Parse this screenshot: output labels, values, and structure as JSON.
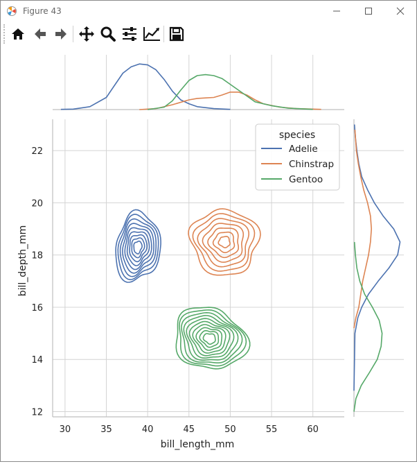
{
  "window": {
    "title": "Figure 43",
    "controls": [
      "minimize",
      "maximize",
      "close"
    ]
  },
  "toolbar": {
    "buttons": [
      {
        "name": "home-icon",
        "label": "Home"
      },
      {
        "name": "back-icon",
        "label": "Back"
      },
      {
        "name": "forward-icon",
        "label": "Forward"
      },
      {
        "name": "pan-icon",
        "label": "Pan"
      },
      {
        "name": "zoom-icon",
        "label": "Zoom"
      },
      {
        "name": "subplots-icon",
        "label": "Subplots"
      },
      {
        "name": "customize-icon",
        "label": "Customize"
      },
      {
        "name": "save-icon",
        "label": "Save"
      }
    ]
  },
  "chart_data": {
    "type": "kde-jointplot",
    "xlabel": "bill_length_mm",
    "ylabel": "bill_depth_mm",
    "xlim": [
      28.5,
      63.8
    ],
    "ylim": [
      11.8,
      23.2
    ],
    "xticks": [
      30,
      35,
      40,
      45,
      50,
      55,
      60
    ],
    "yticks": [
      12,
      14,
      16,
      18,
      20,
      22
    ],
    "grid": true,
    "legend": {
      "title": "species",
      "placement": "top-right"
    },
    "series": [
      {
        "name": "Adelie",
        "color": "#4c72b0",
        "center": [
          38.8,
          18.3
        ],
        "x_marginal": [
          [
            29.5,
            0.005
          ],
          [
            31,
            0.01
          ],
          [
            33,
            0.06
          ],
          [
            35,
            0.25
          ],
          [
            36,
            0.5
          ],
          [
            37,
            0.75
          ],
          [
            38,
            0.88
          ],
          [
            39,
            0.94
          ],
          [
            40,
            0.92
          ],
          [
            41,
            0.82
          ],
          [
            42,
            0.62
          ],
          [
            43,
            0.38
          ],
          [
            44,
            0.2
          ],
          [
            45,
            0.12
          ],
          [
            46,
            0.06
          ],
          [
            48,
            0.02
          ],
          [
            50,
            0.005
          ]
        ],
        "y_marginal": [
          [
            12.8,
            0.0
          ],
          [
            15.0,
            0.02
          ],
          [
            15.6,
            0.08
          ],
          [
            16,
            0.16
          ],
          [
            16.5,
            0.3
          ],
          [
            17,
            0.5
          ],
          [
            17.5,
            0.72
          ],
          [
            18,
            0.9
          ],
          [
            18.5,
            0.95
          ],
          [
            19,
            0.82
          ],
          [
            19.5,
            0.6
          ],
          [
            20,
            0.42
          ],
          [
            20.5,
            0.28
          ],
          [
            21,
            0.16
          ],
          [
            21.5,
            0.1
          ],
          [
            22,
            0.06
          ],
          [
            22.5,
            0.03
          ],
          [
            23,
            0.01
          ]
        ]
      },
      {
        "name": "Chinstrap",
        "color": "#dd8452",
        "center": [
          49.3,
          18.5
        ],
        "x_marginal": [
          [
            39,
            0.0
          ],
          [
            41,
            0.02
          ],
          [
            43,
            0.1
          ],
          [
            45,
            0.2
          ],
          [
            46,
            0.23
          ],
          [
            47,
            0.24
          ],
          [
            48,
            0.25
          ],
          [
            49,
            0.3
          ],
          [
            50,
            0.36
          ],
          [
            51,
            0.36
          ],
          [
            52,
            0.3
          ],
          [
            53,
            0.2
          ],
          [
            54,
            0.12
          ],
          [
            56,
            0.05
          ],
          [
            58,
            0.02
          ],
          [
            61,
            0.005
          ]
        ],
        "y_marginal": [
          [
            15.2,
            0.0
          ],
          [
            15.6,
            0.04
          ],
          [
            16,
            0.1
          ],
          [
            16.5,
            0.14
          ],
          [
            17,
            0.18
          ],
          [
            17.5,
            0.24
          ],
          [
            18,
            0.3
          ],
          [
            18.5,
            0.34
          ],
          [
            19,
            0.36
          ],
          [
            19.5,
            0.34
          ],
          [
            20,
            0.28
          ],
          [
            20.5,
            0.2
          ],
          [
            21,
            0.14
          ],
          [
            21.5,
            0.09
          ],
          [
            22,
            0.05
          ],
          [
            22.8,
            0.02
          ]
        ]
      },
      {
        "name": "Gentoo",
        "color": "#55a868",
        "center": [
          47.5,
          14.8
        ],
        "x_marginal": [
          [
            40,
            0.0
          ],
          [
            42,
            0.05
          ],
          [
            43,
            0.18
          ],
          [
            44,
            0.4
          ],
          [
            45,
            0.6
          ],
          [
            46,
            0.7
          ],
          [
            47,
            0.72
          ],
          [
            48,
            0.7
          ],
          [
            49,
            0.64
          ],
          [
            50,
            0.52
          ],
          [
            51,
            0.4
          ],
          [
            52,
            0.28
          ],
          [
            53,
            0.16
          ],
          [
            55,
            0.08
          ],
          [
            57,
            0.03
          ],
          [
            60,
            0.005
          ]
        ],
        "y_marginal": [
          [
            12,
            0.0
          ],
          [
            12.5,
            0.04
          ],
          [
            13,
            0.15
          ],
          [
            13.5,
            0.32
          ],
          [
            14,
            0.48
          ],
          [
            14.5,
            0.56
          ],
          [
            15,
            0.58
          ],
          [
            15.5,
            0.52
          ],
          [
            16,
            0.38
          ],
          [
            16.5,
            0.22
          ],
          [
            17,
            0.12
          ],
          [
            17.5,
            0.06
          ],
          [
            18,
            0.03
          ],
          [
            18.5,
            0.01
          ]
        ]
      }
    ]
  }
}
